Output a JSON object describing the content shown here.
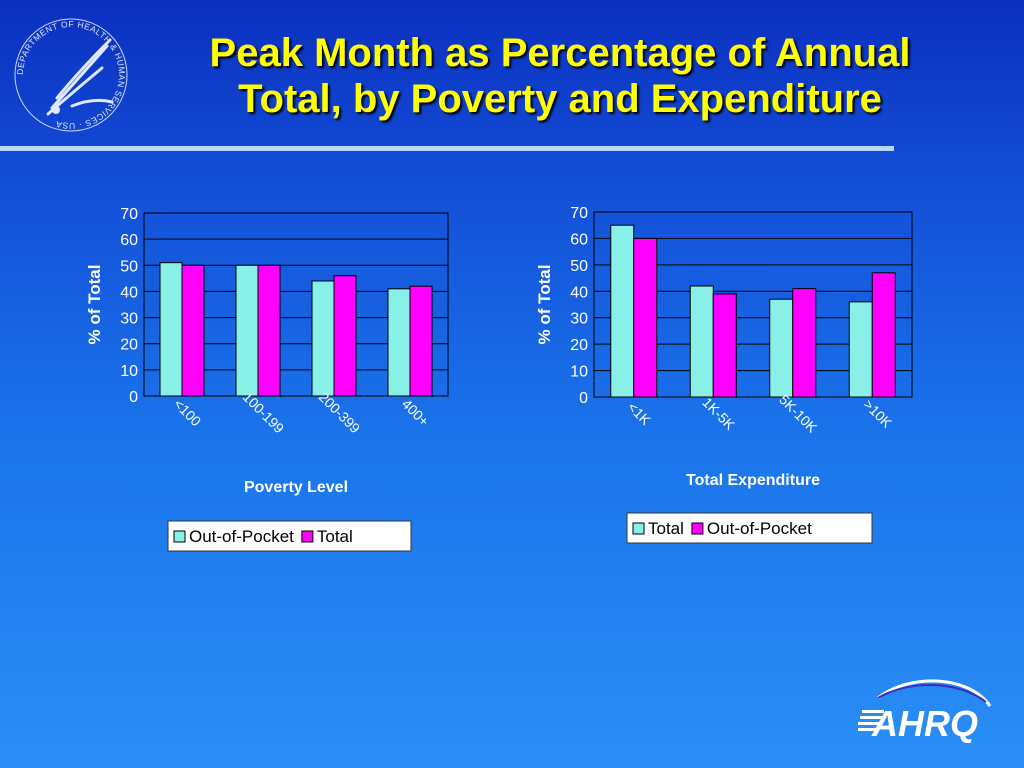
{
  "slide": {
    "title_line1": "Peak Month as Percentage of Annual",
    "title_line2": "Total, by Poverty and Expenditure"
  },
  "seal": {
    "text": "DEPARTMENT OF HEALTH & HUMAN SERVICES · USA"
  },
  "logo": {
    "text": "AHRQ"
  },
  "colors": {
    "cyan": "#88f0e6",
    "magenta": "#ff00ff",
    "title": "#ffff00"
  },
  "chart_data": [
    {
      "type": "bar",
      "categories": [
        "<100",
        "100-199",
        "200-399",
        "400+"
      ],
      "series": [
        {
          "name": "Out-of-Pocket",
          "color": "#88f0e6",
          "values": [
            51,
            50,
            44,
            41
          ]
        },
        {
          "name": "Total",
          "color": "#ff00ff",
          "values": [
            50,
            50,
            46,
            42
          ]
        }
      ],
      "title": "",
      "xlabel": "Poverty Level",
      "ylabel": "% of Total",
      "ylim": [
        0,
        70
      ],
      "yticks": [
        "0",
        "10",
        "20",
        "30",
        "40",
        "50",
        "60",
        "70"
      ],
      "grid": true,
      "legend": "bottom"
    },
    {
      "type": "bar",
      "categories": [
        "<1K",
        "1K-5K",
        "5K-10K",
        ">10K"
      ],
      "series": [
        {
          "name": "Total",
          "color": "#88f0e6",
          "values": [
            65,
            42,
            37,
            36
          ]
        },
        {
          "name": "Out-of-Pocket",
          "color": "#ff00ff",
          "values": [
            60,
            39,
            41,
            47
          ]
        }
      ],
      "title": "",
      "xlabel": "Total Expenditure",
      "ylabel": "% of Total",
      "ylim": [
        0,
        70
      ],
      "yticks": [
        "0",
        "10",
        "20",
        "30",
        "40",
        "50",
        "60",
        "70"
      ],
      "grid": true,
      "legend": "bottom"
    }
  ]
}
